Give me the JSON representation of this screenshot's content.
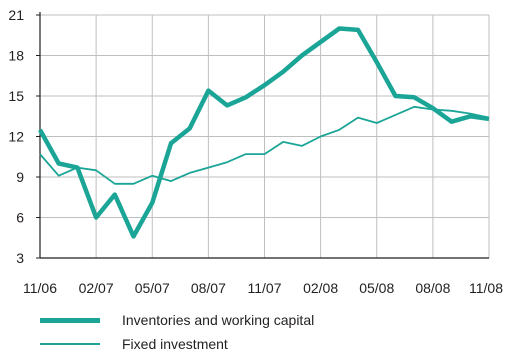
{
  "chart_data": {
    "type": "line",
    "x": [
      "11/06",
      "12/06",
      "01/07",
      "02/07",
      "03/07",
      "04/07",
      "05/07",
      "06/07",
      "07/07",
      "08/07",
      "09/07",
      "10/07",
      "11/07",
      "12/07",
      "01/08",
      "02/08",
      "03/08",
      "04/08",
      "05/08",
      "06/08",
      "07/08",
      "08/08",
      "09/08",
      "10/08",
      "11/08"
    ],
    "xticks": [
      "11/06",
      "02/07",
      "05/07",
      "08/07",
      "11/07",
      "02/08",
      "05/08",
      "08/08",
      "11/08"
    ],
    "yticks": [
      3,
      6,
      9,
      12,
      15,
      18,
      21
    ],
    "ylim": [
      3,
      21
    ],
    "grid": true,
    "legend_position": "bottom-left",
    "series": [
      {
        "name": "Inventories and working capital",
        "color": "#1aa596",
        "line_weight": "thick",
        "values": [
          12.5,
          10.0,
          9.7,
          6.0,
          7.7,
          4.6,
          7.1,
          11.5,
          12.6,
          15.4,
          14.3,
          14.9,
          15.8,
          16.8,
          18.0,
          19.0,
          20.0,
          19.9,
          17.5,
          15.0,
          14.9,
          14.1,
          13.1,
          13.5,
          13.3
        ]
      },
      {
        "name": "Fixed investment",
        "color": "#1aa596",
        "line_weight": "thin",
        "values": [
          10.7,
          9.1,
          9.7,
          9.5,
          8.5,
          8.5,
          9.1,
          8.7,
          9.3,
          9.7,
          10.1,
          10.7,
          10.7,
          11.6,
          11.3,
          12.0,
          12.5,
          13.4,
          13.0,
          13.6,
          14.2,
          14.0,
          13.9,
          13.7,
          13.4
        ]
      }
    ]
  }
}
